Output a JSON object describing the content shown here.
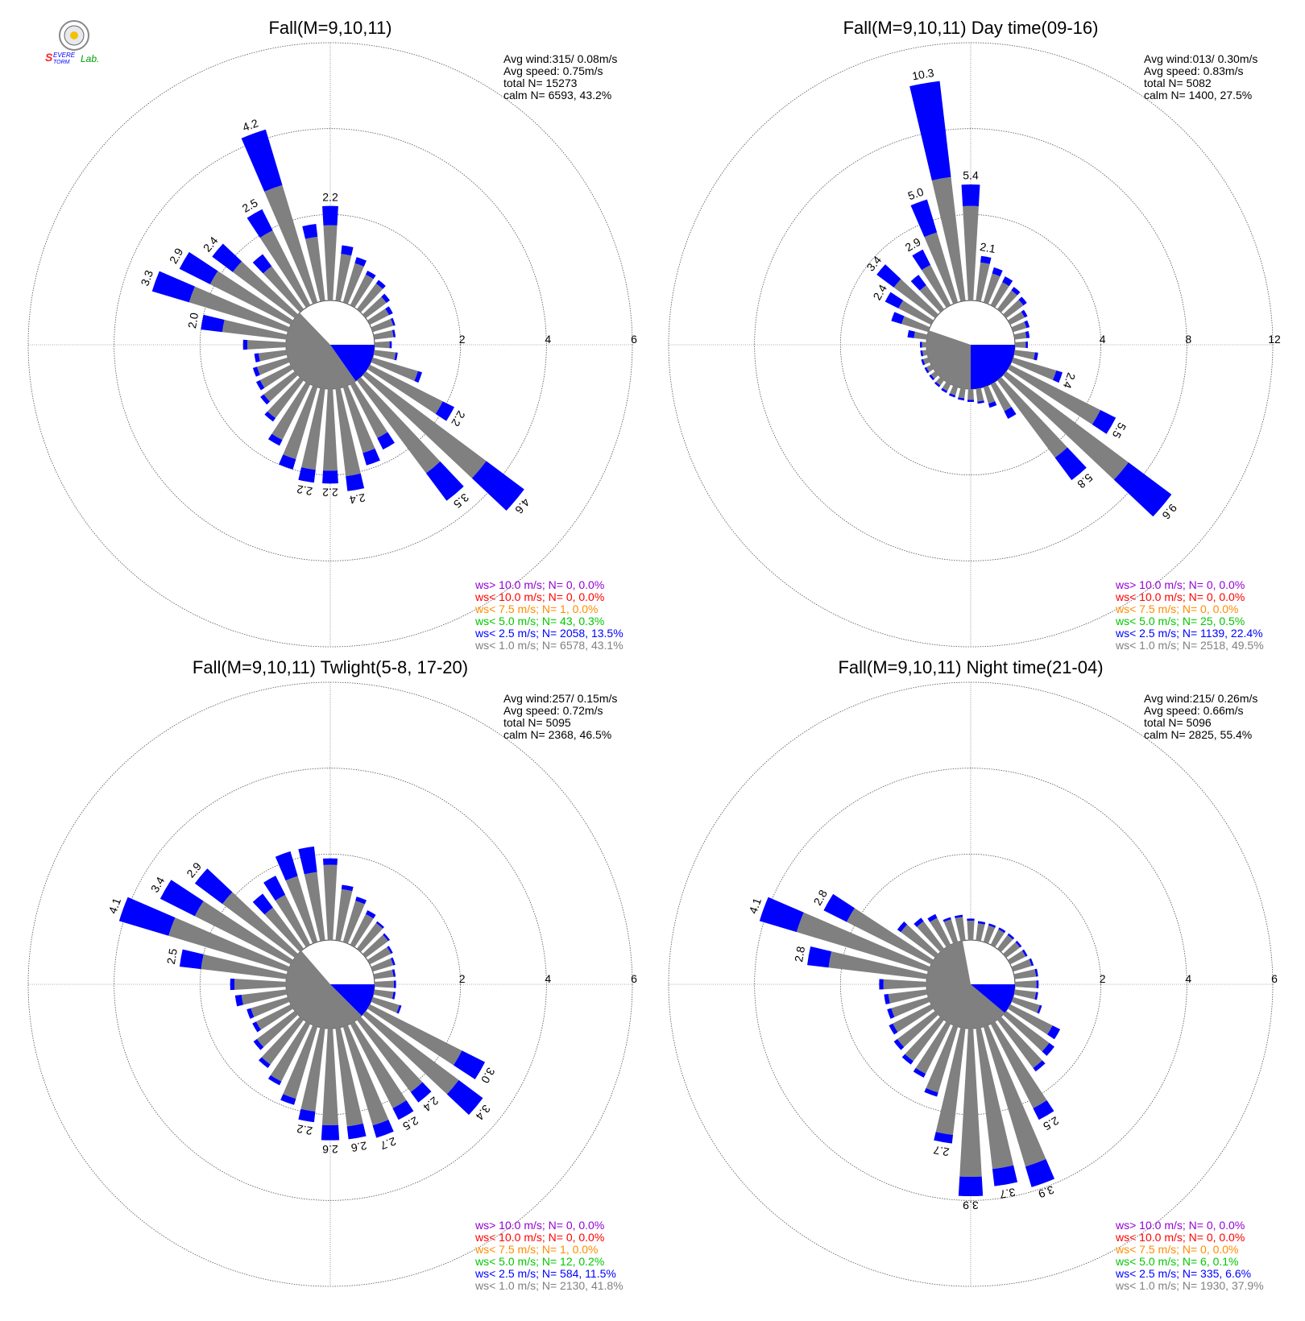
{
  "logo": {
    "text": "Severe Storm Lab."
  },
  "colors": {
    "calm": "#808080",
    "c1": "#808080",
    "c25": "#0000ff",
    "c5": "#00c800",
    "c75": "#ff8c00",
    "c10": "#ff0000",
    "cgt10": "#9400d3"
  },
  "chart_data": [
    {
      "type": "wind-rose",
      "title": "Fall(M=9,10,11)",
      "rmax": 6,
      "ring_labels": [
        "2",
        "4",
        "6"
      ],
      "stats": [
        "Avg wind:315/ 0.08m/s",
        "Avg speed: 0.75m/s",
        "total N=      15273",
        "calm N=   6593,  43.2%"
      ],
      "calm_pct": 43.2,
      "calm_blue_from": 90,
      "calm_blue_to": 145,
      "bars": [
        {
          "dir": 0,
          "v": 2.2,
          "b": 0.45,
          "label": "2.2"
        },
        {
          "dir": 10,
          "v": 1.3,
          "b": 0.2
        },
        {
          "dir": 20,
          "v": 1.1,
          "b": 0.15
        },
        {
          "dir": 30,
          "v": 0.9,
          "b": 0.1
        },
        {
          "dir": 40,
          "v": 0.85,
          "b": 0.1
        },
        {
          "dir": 50,
          "v": 0.7,
          "b": 0.1
        },
        {
          "dir": 60,
          "v": 0.6,
          "b": 0.1
        },
        {
          "dir": 70,
          "v": 0.55,
          "b": 0.05
        },
        {
          "dir": 80,
          "v": 0.5,
          "b": 0.05
        },
        {
          "dir": 90,
          "v": 0.4,
          "b": 0.05
        },
        {
          "dir": 100,
          "v": 0.55,
          "b": 0.05
        },
        {
          "dir": 110,
          "v": 1.2,
          "b": 0.1
        },
        {
          "dir": 120,
          "v": 2.2,
          "b": 0.3,
          "label": "2.2"
        },
        {
          "dir": 130,
          "v": 4.6,
          "b": 1.1,
          "label": "4.6"
        },
        {
          "dir": 140,
          "v": 3.5,
          "b": 0.8,
          "label": "3.5"
        },
        {
          "dir": 150,
          "v": 1.7,
          "b": 0.3
        },
        {
          "dir": 160,
          "v": 1.9,
          "b": 0.3
        },
        {
          "dir": 170,
          "v": 2.4,
          "b": 0.35,
          "label": "2.4"
        },
        {
          "dir": 180,
          "v": 2.2,
          "b": 0.3,
          "label": "2.2"
        },
        {
          "dir": 190,
          "v": 2.2,
          "b": 0.3,
          "label": "2.2"
        },
        {
          "dir": 200,
          "v": 2.0,
          "b": 0.25
        },
        {
          "dir": 210,
          "v": 1.6,
          "b": 0.15
        },
        {
          "dir": 220,
          "v": 1.2,
          "b": 0.1
        },
        {
          "dir": 230,
          "v": 1.0,
          "b": 0.1
        },
        {
          "dir": 240,
          "v": 0.9,
          "b": 0.1
        },
        {
          "dir": 250,
          "v": 0.85,
          "b": 0.1
        },
        {
          "dir": 260,
          "v": 0.75,
          "b": 0.1
        },
        {
          "dir": 270,
          "v": 1.0,
          "b": 0.1
        },
        {
          "dir": 280,
          "v": 2.0,
          "b": 0.5,
          "label": "2.0"
        },
        {
          "dir": 290,
          "v": 3.3,
          "b": 0.9,
          "label": "3.3"
        },
        {
          "dir": 300,
          "v": 2.9,
          "b": 0.8,
          "label": "2.9"
        },
        {
          "dir": 310,
          "v": 2.4,
          "b": 0.6,
          "label": "2.4"
        },
        {
          "dir": 320,
          "v": 1.6,
          "b": 0.35
        },
        {
          "dir": 330,
          "v": 2.5,
          "b": 0.55,
          "label": "2.5"
        },
        {
          "dir": 340,
          "v": 4.2,
          "b": 1.35,
          "label": "4.2"
        },
        {
          "dir": 350,
          "v": 1.8,
          "b": 0.3
        }
      ],
      "legend": [
        {
          "text": "ws> 10.0 m/s; N=      0,  0.0%",
          "color": "#9400d3"
        },
        {
          "text": "ws< 10.0 m/s; N=      0,  0.0%",
          "color": "#ff0000"
        },
        {
          "text": "ws<  7.5 m/s; N=      1,  0.0%",
          "color": "#ff8c00"
        },
        {
          "text": "ws<  5.0 m/s; N=     43,  0.3%",
          "color": "#00c800"
        },
        {
          "text": "ws<  2.5 m/s; N=  2058, 13.5%",
          "color": "#0000ff"
        },
        {
          "text": "ws<  1.0 m/s; N=  6578, 43.1%",
          "color": "#808080"
        }
      ]
    },
    {
      "type": "wind-rose",
      "title": "Fall(M=9,10,11) Day time(09-16)",
      "rmax": 12,
      "ring_labels": [
        "4",
        "8",
        "12"
      ],
      "stats": [
        "Avg wind:013/ 0.30m/s",
        "Avg speed: 0.83m/s",
        "total N=        5082",
        "calm N=   1400,  27.5%"
      ],
      "calm_pct": 27.5,
      "calm_blue_from": 90,
      "calm_blue_to": 180,
      "bars": [
        {
          "dir": 0,
          "v": 5.4,
          "b": 1.0,
          "label": "5.4"
        },
        {
          "dir": 10,
          "v": 2.1,
          "b": 0.3,
          "label": "2.1"
        },
        {
          "dir": 20,
          "v": 1.7,
          "b": 0.3
        },
        {
          "dir": 30,
          "v": 1.5,
          "b": 0.3
        },
        {
          "dir": 40,
          "v": 1.3,
          "b": 0.2
        },
        {
          "dir": 50,
          "v": 1.2,
          "b": 0.2
        },
        {
          "dir": 60,
          "v": 0.9,
          "b": 0.15
        },
        {
          "dir": 70,
          "v": 0.8,
          "b": 0.15
        },
        {
          "dir": 80,
          "v": 0.7,
          "b": 0.15
        },
        {
          "dir": 90,
          "v": 0.6,
          "b": 0.1
        },
        {
          "dir": 100,
          "v": 1.1,
          "b": 0.15
        },
        {
          "dir": 110,
          "v": 2.4,
          "b": 0.3,
          "label": "2.4"
        },
        {
          "dir": 120,
          "v": 5.5,
          "b": 0.8,
          "label": "5.5"
        },
        {
          "dir": 130,
          "v": 9.6,
          "b": 2.5,
          "label": "9.6"
        },
        {
          "dir": 140,
          "v": 5.8,
          "b": 1.3,
          "label": "5.8"
        },
        {
          "dir": 150,
          "v": 1.8,
          "b": 0.4
        },
        {
          "dir": 160,
          "v": 1.0,
          "b": 0.2
        },
        {
          "dir": 170,
          "v": 0.7,
          "b": 0.1
        },
        {
          "dir": 180,
          "v": 0.6,
          "b": 0.1
        },
        {
          "dir": 190,
          "v": 0.55,
          "b": 0.1
        },
        {
          "dir": 200,
          "v": 0.5,
          "b": 0.1
        },
        {
          "dir": 210,
          "v": 0.45,
          "b": 0.1
        },
        {
          "dir": 220,
          "v": 0.4,
          "b": 0.1
        },
        {
          "dir": 230,
          "v": 0.35,
          "b": 0.1
        },
        {
          "dir": 240,
          "v": 0.35,
          "b": 0.1
        },
        {
          "dir": 250,
          "v": 0.35,
          "b": 0.1
        },
        {
          "dir": 260,
          "v": 0.3,
          "b": 0.1
        },
        {
          "dir": 270,
          "v": 0.3,
          "b": 0.1
        },
        {
          "dir": 280,
          "v": 0.9,
          "b": 0.3
        },
        {
          "dir": 290,
          "v": 1.8,
          "b": 0.5
        },
        {
          "dir": 300,
          "v": 2.4,
          "b": 0.7,
          "label": "2.4"
        },
        {
          "dir": 310,
          "v": 3.4,
          "b": 1.0,
          "label": "3.4"
        },
        {
          "dir": 320,
          "v": 2.0,
          "b": 0.6
        },
        {
          "dir": 330,
          "v": 2.9,
          "b": 0.8,
          "label": "2.9"
        },
        {
          "dir": 340,
          "v": 5.0,
          "b": 1.6,
          "label": "5.0"
        },
        {
          "dir": 350,
          "v": 10.3,
          "b": 4.5,
          "label": "10.3"
        }
      ],
      "legend": [
        {
          "text": "ws> 10.0 m/s; N=      0,  0.0%",
          "color": "#9400d3"
        },
        {
          "text": "ws< 10.0 m/s; N=      0,  0.0%",
          "color": "#ff0000"
        },
        {
          "text": "ws<  7.5 m/s; N=      0,  0.0%",
          "color": "#ff8c00"
        },
        {
          "text": "ws<  5.0 m/s; N=     25,  0.5%",
          "color": "#00c800"
        },
        {
          "text": "ws<  2.5 m/s; N=  1139, 22.4%",
          "color": "#0000ff"
        },
        {
          "text": "ws<  1.0 m/s; N=  2518, 49.5%",
          "color": "#808080"
        }
      ]
    },
    {
      "type": "wind-rose",
      "title": "Fall(M=9,10,11) Twlight(5-8, 17-20)",
      "rmax": 6,
      "ring_labels": [
        "2",
        "4",
        "6"
      ],
      "stats": [
        "Avg wind:257/ 0.15m/s",
        "Avg speed: 0.72m/s",
        "total N=        5095",
        "calm N=   2368,  46.5%"
      ],
      "calm_pct": 46.5,
      "calm_blue_from": 90,
      "calm_blue_to": 135,
      "bars": [
        {
          "dir": 0,
          "v": 1.9,
          "b": 0.15
        },
        {
          "dir": 10,
          "v": 1.3,
          "b": 0.1
        },
        {
          "dir": 20,
          "v": 1.1,
          "b": 0.1
        },
        {
          "dir": 30,
          "v": 0.9,
          "b": 0.1
        },
        {
          "dir": 40,
          "v": 0.8,
          "b": 0.05
        },
        {
          "dir": 50,
          "v": 0.7,
          "b": 0.05
        },
        {
          "dir": 60,
          "v": 0.6,
          "b": 0.05
        },
        {
          "dir": 70,
          "v": 0.55,
          "b": 0.05
        },
        {
          "dir": 80,
          "v": 0.5,
          "b": 0.05
        },
        {
          "dir": 90,
          "v": 0.5,
          "b": 0.05
        },
        {
          "dir": 100,
          "v": 0.5,
          "b": 0.05
        },
        {
          "dir": 110,
          "v": 0.7,
          "b": 0.05
        },
        {
          "dir": 120,
          "v": 3.0,
          "b": 0.6,
          "label": "3.0"
        },
        {
          "dir": 130,
          "v": 3.4,
          "b": 0.7,
          "label": "3.4"
        },
        {
          "dir": 140,
          "v": 2.4,
          "b": 0.3,
          "label": "2.4"
        },
        {
          "dir": 150,
          "v": 2.5,
          "b": 0.3,
          "label": "2.5"
        },
        {
          "dir": 160,
          "v": 2.7,
          "b": 0.3,
          "label": "2.7"
        },
        {
          "dir": 170,
          "v": 2.6,
          "b": 0.3,
          "label": "2.6"
        },
        {
          "dir": 180,
          "v": 2.6,
          "b": 0.35,
          "label": "2.6"
        },
        {
          "dir": 190,
          "v": 2.2,
          "b": 0.25,
          "label": "2.2"
        },
        {
          "dir": 200,
          "v": 1.9,
          "b": 0.15
        },
        {
          "dir": 210,
          "v": 1.6,
          "b": 0.1
        },
        {
          "dir": 220,
          "v": 1.4,
          "b": 0.1
        },
        {
          "dir": 230,
          "v": 1.2,
          "b": 0.1
        },
        {
          "dir": 240,
          "v": 1.0,
          "b": 0.1
        },
        {
          "dir": 250,
          "v": 1.0,
          "b": 0.1
        },
        {
          "dir": 260,
          "v": 1.2,
          "b": 0.15
        },
        {
          "dir": 270,
          "v": 1.3,
          "b": 0.1
        },
        {
          "dir": 280,
          "v": 2.5,
          "b": 0.5,
          "label": "2.5"
        },
        {
          "dir": 290,
          "v": 4.1,
          "b": 1.2,
          "label": "4.1"
        },
        {
          "dir": 300,
          "v": 3.4,
          "b": 0.9,
          "label": "3.4"
        },
        {
          "dir": 310,
          "v": 2.9,
          "b": 0.8,
          "label": "2.9"
        },
        {
          "dir": 320,
          "v": 1.6,
          "b": 0.4
        },
        {
          "dir": 330,
          "v": 1.8,
          "b": 0.5
        },
        {
          "dir": 340,
          "v": 2.2,
          "b": 0.6
        },
        {
          "dir": 350,
          "v": 2.2,
          "b": 0.6
        }
      ],
      "legend": [
        {
          "text": "ws> 10.0 m/s; N=      0,  0.0%",
          "color": "#9400d3"
        },
        {
          "text": "ws< 10.0 m/s; N=      0,  0.0%",
          "color": "#ff0000"
        },
        {
          "text": "ws<  7.5 m/s; N=      1,  0.0%",
          "color": "#ff8c00"
        },
        {
          "text": "ws<  5.0 m/s; N=     12,  0.2%",
          "color": "#00c800"
        },
        {
          "text": "ws<  2.5 m/s; N=    584, 11.5%",
          "color": "#0000ff"
        },
        {
          "text": "ws<  1.0 m/s; N=  2130, 41.8%",
          "color": "#808080"
        }
      ]
    },
    {
      "type": "wind-rose",
      "title": "Fall(M=9,10,11) Night time(21-04)",
      "rmax": 6,
      "ring_labels": [
        "2",
        "4",
        "6"
      ],
      "stats": [
        "Avg wind:215/ 0.26m/s",
        "Avg speed: 0.66m/s",
        "total N=        5096",
        "calm N=   2825,  55.4%"
      ],
      "calm_pct": 55.4,
      "calm_blue_from": 90,
      "calm_blue_to": 130,
      "bars": [
        {
          "dir": 0,
          "v": 0.5,
          "b": 0.05
        },
        {
          "dir": 10,
          "v": 0.45,
          "b": 0.05
        },
        {
          "dir": 20,
          "v": 0.45,
          "b": 0.05
        },
        {
          "dir": 30,
          "v": 0.45,
          "b": 0.05
        },
        {
          "dir": 40,
          "v": 0.45,
          "b": 0.05
        },
        {
          "dir": 50,
          "v": 0.45,
          "b": 0.05
        },
        {
          "dir": 60,
          "v": 0.45,
          "b": 0.05
        },
        {
          "dir": 70,
          "v": 0.5,
          "b": 0.05
        },
        {
          "dir": 80,
          "v": 0.55,
          "b": 0.05
        },
        {
          "dir": 90,
          "v": 0.55,
          "b": 0.05
        },
        {
          "dir": 100,
          "v": 0.55,
          "b": 0.05
        },
        {
          "dir": 110,
          "v": 0.7,
          "b": 0.05
        },
        {
          "dir": 120,
          "v": 1.3,
          "b": 0.2
        },
        {
          "dir": 130,
          "v": 1.4,
          "b": 0.15
        },
        {
          "dir": 140,
          "v": 1.5,
          "b": 0.1
        },
        {
          "dir": 150,
          "v": 2.5,
          "b": 0.3,
          "label": "2.5"
        },
        {
          "dir": 160,
          "v": 3.9,
          "b": 0.5,
          "label": "3.9"
        },
        {
          "dir": 170,
          "v": 3.7,
          "b": 0.4,
          "label": "3.7"
        },
        {
          "dir": 180,
          "v": 3.9,
          "b": 0.45,
          "label": "3.9"
        },
        {
          "dir": 190,
          "v": 2.7,
          "b": 0.2,
          "label": "2.7"
        },
        {
          "dir": 200,
          "v": 1.7,
          "b": 0.1
        },
        {
          "dir": 210,
          "v": 1.4,
          "b": 0.1
        },
        {
          "dir": 220,
          "v": 1.3,
          "b": 0.1
        },
        {
          "dir": 230,
          "v": 1.2,
          "b": 0.1
        },
        {
          "dir": 240,
          "v": 1.1,
          "b": 0.1
        },
        {
          "dir": 250,
          "v": 1.0,
          "b": 0.1
        },
        {
          "dir": 260,
          "v": 1.0,
          "b": 0.1
        },
        {
          "dir": 270,
          "v": 1.1,
          "b": 0.1
        },
        {
          "dir": 280,
          "v": 2.8,
          "b": 0.5,
          "label": "2.8"
        },
        {
          "dir": 290,
          "v": 4.1,
          "b": 0.9,
          "label": "4.1"
        },
        {
          "dir": 300,
          "v": 2.8,
          "b": 0.6,
          "label": "2.8"
        },
        {
          "dir": 310,
          "v": 1.1,
          "b": 0.1
        },
        {
          "dir": 320,
          "v": 0.9,
          "b": 0.1
        },
        {
          "dir": 330,
          "v": 0.8,
          "b": 0.1
        },
        {
          "dir": 340,
          "v": 0.6,
          "b": 0.05
        },
        {
          "dir": 350,
          "v": 0.6,
          "b": 0.05
        }
      ],
      "legend": [
        {
          "text": "ws> 10.0 m/s; N=      0,  0.0%",
          "color": "#9400d3"
        },
        {
          "text": "ws< 10.0 m/s; N=      0,  0.0%",
          "color": "#ff0000"
        },
        {
          "text": "ws<  7.5 m/s; N=      0,  0.0%",
          "color": "#ff8c00"
        },
        {
          "text": "ws<  5.0 m/s; N=      6,  0.1%",
          "color": "#00c800"
        },
        {
          "text": "ws<  2.5 m/s; N=    335,  6.6%",
          "color": "#0000ff"
        },
        {
          "text": "ws<  1.0 m/s; N=  1930, 37.9%",
          "color": "#808080"
        }
      ]
    }
  ]
}
